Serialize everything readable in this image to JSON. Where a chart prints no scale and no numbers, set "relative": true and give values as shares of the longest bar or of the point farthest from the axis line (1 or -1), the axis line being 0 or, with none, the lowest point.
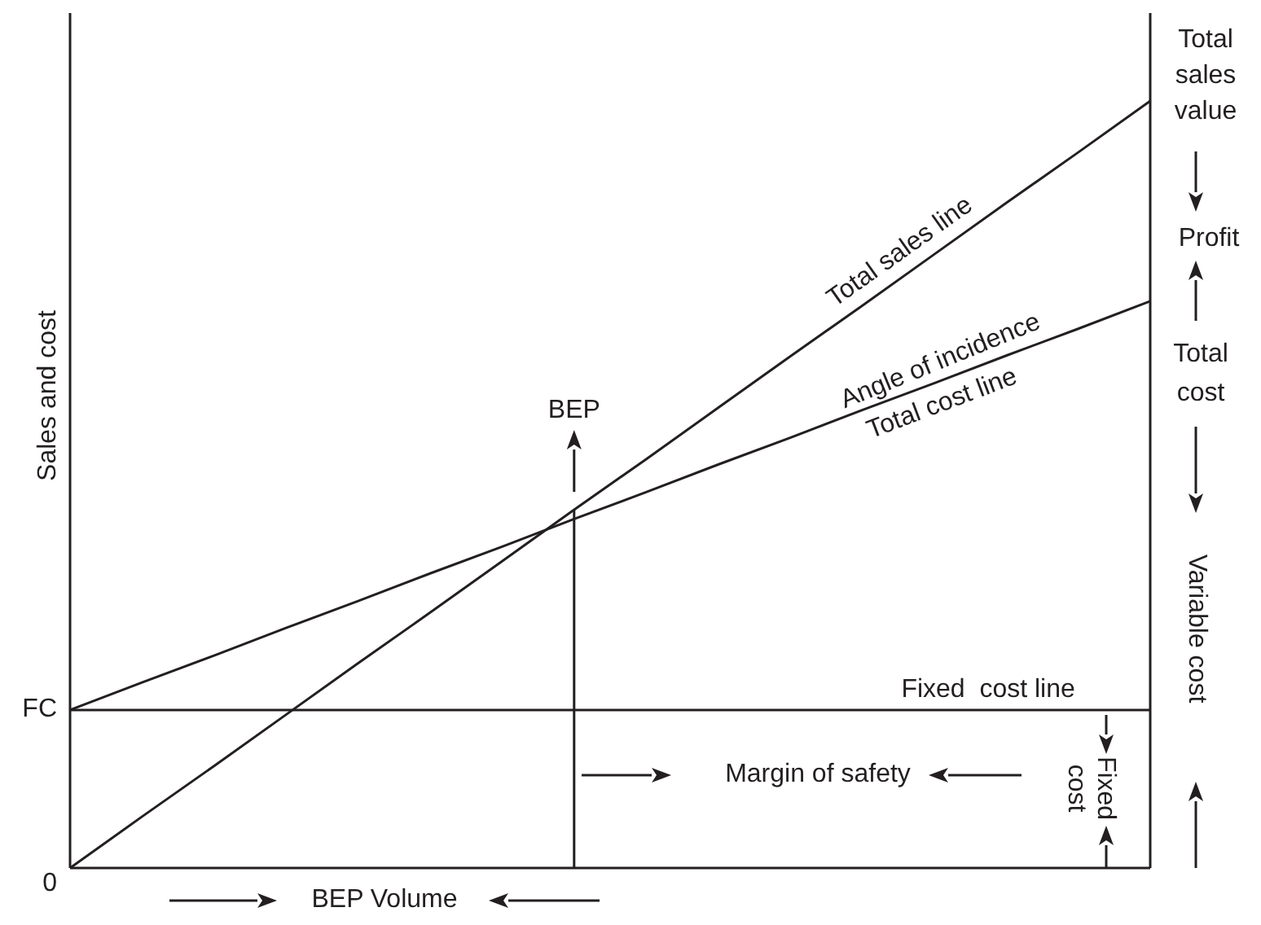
{
  "chart_data": {
    "type": "line",
    "relative": true,
    "ylabel": "Sales and cost",
    "categories": [
      null,
      null,
      null,
      null,
      null,
      null,
      null,
      null,
      null,
      null,
      null,
      null,
      null,
      null,
      null,
      null
    ],
    "series": [
      {
        "name": "Total sales line",
        "color": "#231f20",
        "values": [
          0,
          0.067,
          0.133,
          0.2,
          0.267,
          0.333,
          0.4,
          0.467,
          0.533,
          0.6,
          0.667,
          0.733,
          0.8,
          0.867,
          0.933,
          1
        ]
      },
      {
        "name": "Total cost line",
        "color": "#231f20",
        "values": [
          0.206,
          0.242,
          0.277,
          0.313,
          0.348,
          0.384,
          0.419,
          0.455,
          0.49,
          0.526,
          0.561,
          0.597,
          0.632,
          0.668,
          0.703,
          0.739
        ]
      },
      {
        "name": "Fixed  cost line",
        "color": "#231f20",
        "values": [
          0.206,
          0.206,
          0.206,
          0.206,
          0.206,
          0.206,
          0.206,
          0.206,
          0.206,
          0.206,
          0.206,
          0.206,
          0.206,
          0.206,
          0.206,
          0.206
        ]
      }
    ],
    "annotations": [
      "0",
      "FC",
      "BEP",
      "Angle of incidence",
      "Total sales value",
      "Profit",
      "Total cost",
      "Variable cost",
      "Margin of safety",
      "Fixed cost",
      "BEP Volume"
    ]
  }
}
